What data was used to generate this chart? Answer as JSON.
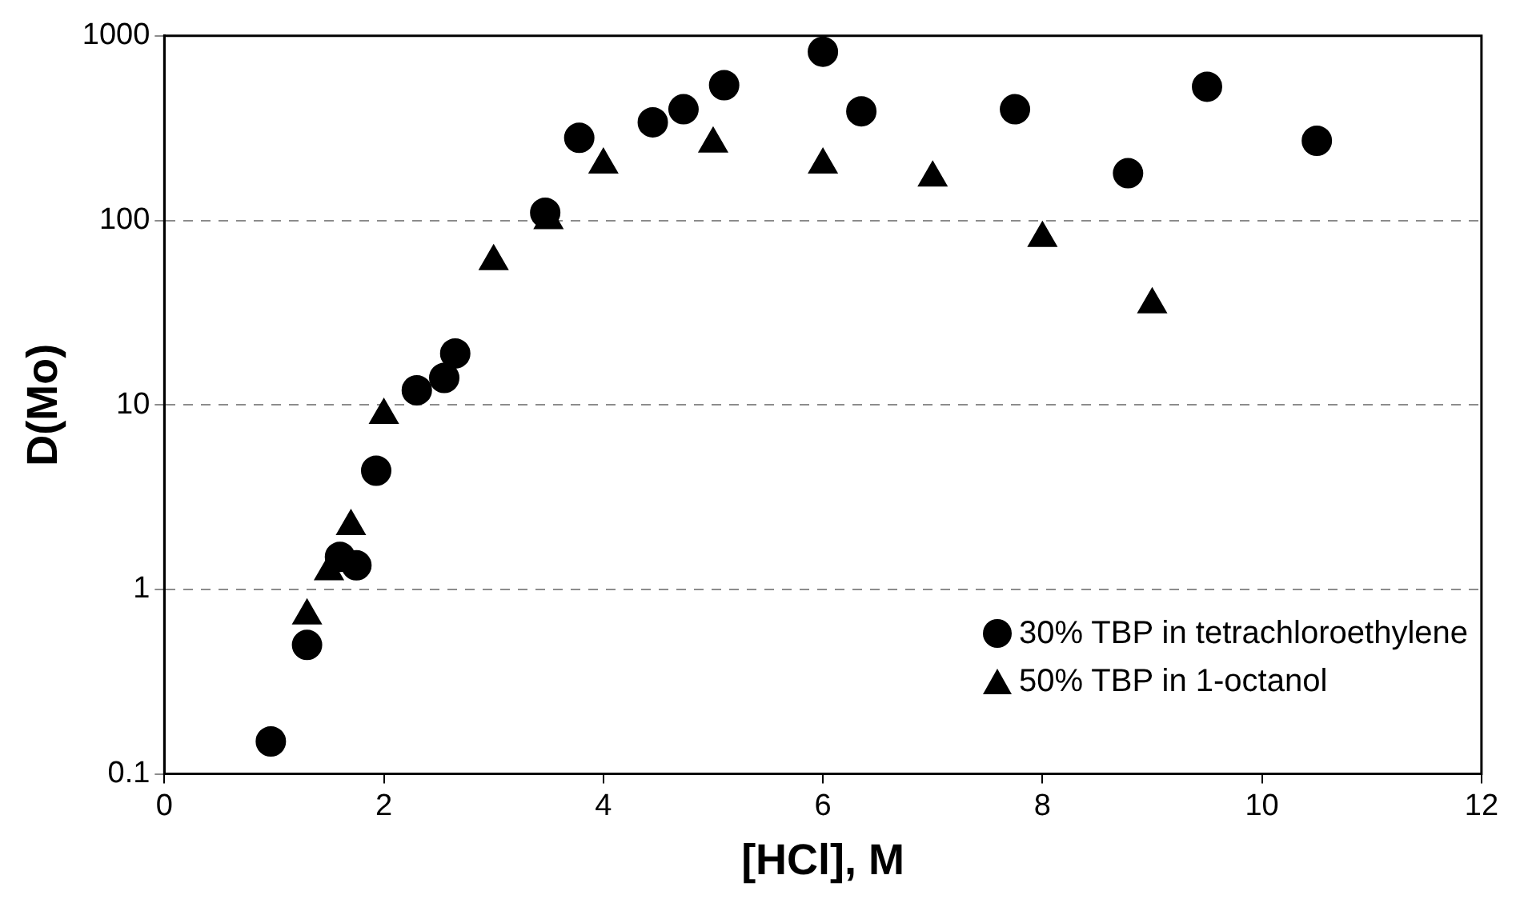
{
  "chart_data": {
    "type": "scatter",
    "xlabel": "[HCl], M",
    "ylabel": "D(Mo)",
    "log": "y",
    "grid": "y",
    "legend": "bottom right",
    "xlim": [
      0,
      12
    ],
    "xticks": [
      0,
      2,
      4,
      6,
      8,
      10,
      12
    ],
    "ylim": [
      0.1,
      1000
    ],
    "yticks": [
      0.1,
      1,
      10,
      100,
      1000
    ],
    "series": [
      {
        "name": "30% TBP in tetrachloroethylene",
        "color": "#000000",
        "marker": "circle",
        "x": [
          0.97,
          1.3,
          1.6,
          1.75,
          1.93,
          2.3,
          2.55,
          2.65,
          3.47,
          3.78,
          4.45,
          4.73,
          5.1,
          6.0,
          6.35,
          7.75,
          8.78,
          9.5,
          10.5
        ],
        "values": [
          0.15,
          0.5,
          1.5,
          1.35,
          4.4,
          12,
          14,
          19,
          110,
          280,
          340,
          400,
          540,
          820,
          390,
          400,
          180,
          530,
          270
        ]
      },
      {
        "name": "50% TBP in 1-octanol",
        "color": "#000000",
        "marker": "triangle",
        "x": [
          1.3,
          1.5,
          1.7,
          2.0,
          2.55,
          3.0,
          3.5,
          4.0,
          5.0,
          6.0,
          7.0,
          8.0,
          9.0
        ],
        "values": [
          0.72,
          1.25,
          2.2,
          8.8,
          null,
          60,
          100,
          200,
          260,
          200,
          170,
          80,
          35
        ]
      }
    ]
  }
}
